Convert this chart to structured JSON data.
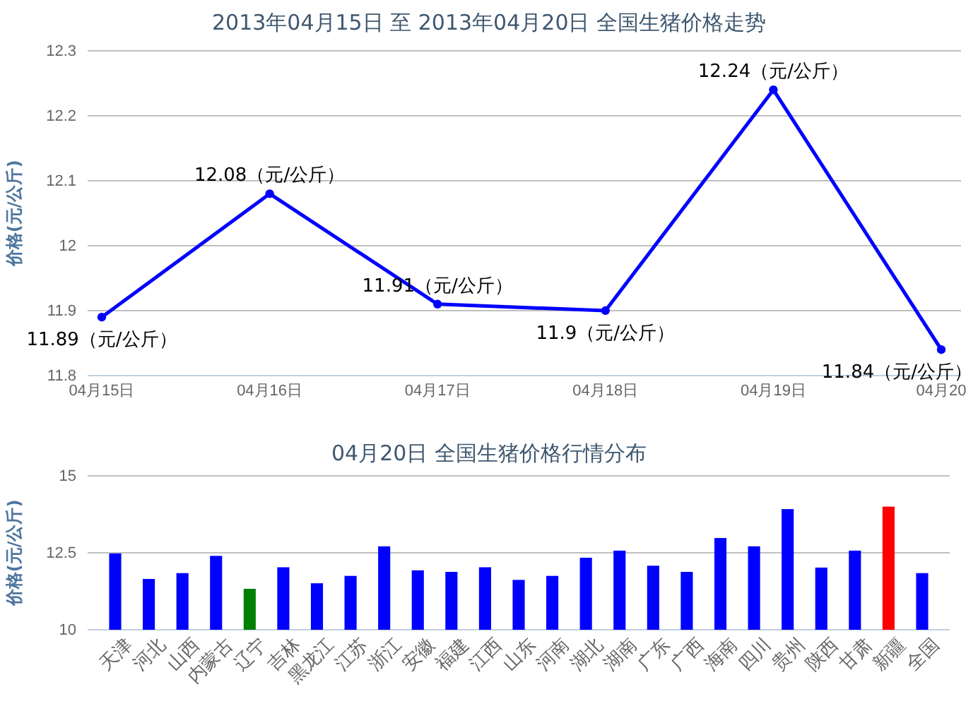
{
  "chart_data": [
    {
      "type": "line",
      "title": "2013年04月15日  至  2013年04月20日  全国生猪价格走势",
      "ylabel": "价格(元/公斤)",
      "categories": [
        "04月15日",
        "04月16日",
        "04月17日",
        "04月18日",
        "04月19日",
        "04月20"
      ],
      "series": [
        {
          "color": "#0000ff",
          "values": [
            11.89,
            12.08,
            11.91,
            11.9,
            12.24,
            11.84
          ],
          "value_labels": [
            "11.89（元/公斤）",
            "12.08（元/公斤）",
            "11.91（元/公斤）",
            "11.9（元/公斤）",
            "12.24（元/公斤）",
            "11.84（元/公斤）"
          ]
        }
      ],
      "ylim": [
        11.8,
        12.3
      ],
      "yticks": [
        11.8,
        11.9,
        12,
        12.1,
        12.2,
        12.3
      ],
      "grid": "y",
      "marker": "circle",
      "line_style": "solid"
    },
    {
      "type": "bar",
      "title": "04月20日  全国生猪价格行情分布",
      "ylabel": "价格(元/公斤)",
      "categories": [
        "天津",
        "河北",
        "山西",
        "内蒙古",
        "辽宁",
        "吉林",
        "黑龙江",
        "江苏",
        "浙江",
        "安徽",
        "福建",
        "江西",
        "山东",
        "河南",
        "湖北",
        "湖南",
        "广东",
        "广西",
        "海南",
        "四川",
        "贵州",
        "陕西",
        "甘肃",
        "新疆",
        "全国"
      ],
      "values": [
        12.48,
        11.65,
        11.84,
        12.4,
        11.33,
        12.03,
        11.51,
        11.75,
        12.71,
        11.93,
        11.88,
        12.03,
        11.62,
        11.75,
        12.34,
        12.57,
        12.08,
        11.88,
        12.98,
        12.71,
        13.92,
        12.02,
        12.57,
        14.0,
        11.84
      ],
      "colors": [
        "#0000ff",
        "#0000ff",
        "#0000ff",
        "#0000ff",
        "#008000",
        "#0000ff",
        "#0000ff",
        "#0000ff",
        "#0000ff",
        "#0000ff",
        "#0000ff",
        "#0000ff",
        "#0000ff",
        "#0000ff",
        "#0000ff",
        "#0000ff",
        "#0000ff",
        "#0000ff",
        "#0000ff",
        "#0000ff",
        "#0000ff",
        "#0000ff",
        "#0000ff",
        "#ff0000",
        "#0000ff"
      ],
      "ylim": [
        10,
        15
      ],
      "yticks": [
        10,
        12.5,
        15
      ],
      "grid": "y"
    }
  ]
}
